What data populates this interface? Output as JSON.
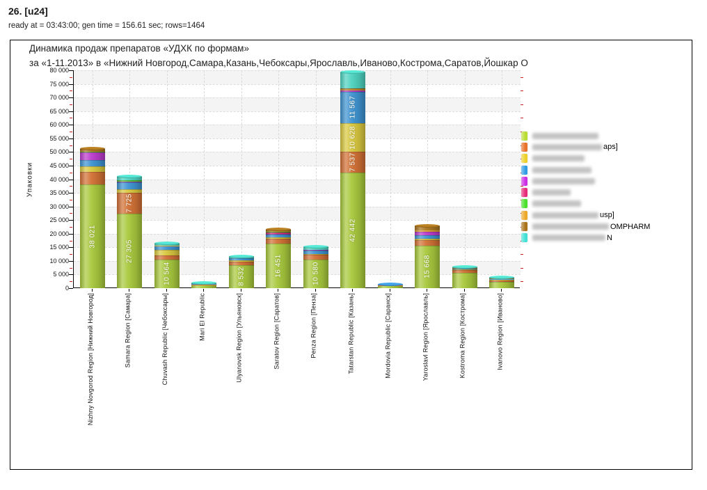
{
  "header": {
    "title": "26. [u24]",
    "meta": "ready at = 03:43:00; gen time = 156.61 sec; rows=1464"
  },
  "chart": {
    "title_line1": "Динамика продаж препаратов «УДХК по формам»",
    "title_line2": "за «1-11.2013» в «Нижний Новгород,Самара,Казань,Чебоксары,Ярославль,Иваново,Кострома,Саратов,Йошкар О",
    "y_axis_title": "Упаковки"
  },
  "chart_data": {
    "type": "bar",
    "stacked": true,
    "title": "Динамика продаж препаратов «УДХК по формам»",
    "subtitle": "за «1-11.2013» в «Нижний Новгород,Самара,Казань,Чебоксары,Ярославль,Иваново,Кострома,Саратов,Йошкар О",
    "ylabel": "Упаковки",
    "ylim": [
      0,
      80000
    ],
    "ytick_step": 5000,
    "ytick_minor_step": 2500,
    "grid": "alternating-bands-with-dashed-lines",
    "legend_position": "right",
    "categories": [
      "Nizhny Novgorod Region [Нижний Новгород]",
      "Samara Region [Самара]",
      "Chuvash Republic [Чебоксары]",
      "Mari El Republic",
      "Ulyanovsk Region [Ульяновск]",
      "Saratov Region [Саратов]",
      "Penza Region [Пенза]",
      "Tatarstan Republic [Казань]",
      "Mordovia Republic [Саранск]",
      "Yaroslavl Region [Ярославль]",
      "Kostroma Region [Кострома]",
      "Ivanovo Region [Иваново]"
    ],
    "series": [
      {
        "name": "redacted",
        "color": "#a8c93c",
        "values": [
          38021,
          27305,
          10564,
          1200,
          8532,
          16451,
          10580,
          42442,
          900,
          15668,
          5500,
          2400
        ]
      },
      {
        "name": "redacted [caps]",
        "color": "#d27035",
        "values": [
          4600,
          7725,
          1400,
          200,
          1100,
          1700,
          1600,
          7537,
          200,
          2000,
          1100,
          500
        ]
      },
      {
        "name": "redacted",
        "color": "#d9c83f",
        "values": [
          2000,
          1300,
          2000,
          100,
          500,
          400,
          400,
          10628,
          100,
          500,
          200,
          300
        ]
      },
      {
        "name": "redacted",
        "color": "#3e93d2",
        "values": [
          2300,
          2600,
          1500,
          100,
          800,
          1200,
          1200,
          11567,
          100,
          1300,
          400,
          200
        ]
      },
      {
        "name": "redacted",
        "color": "#bb3bcc",
        "values": [
          2800,
          300,
          0,
          0,
          0,
          300,
          400,
          500,
          0,
          1300,
          0,
          0
        ]
      },
      {
        "name": "redacted",
        "color": "#d63572",
        "values": [
          0,
          0,
          0,
          0,
          0,
          300,
          0,
          0,
          0,
          0,
          0,
          0
        ]
      },
      {
        "name": "redacted",
        "color": "#52cc30",
        "values": [
          300,
          300,
          0,
          0,
          0,
          400,
          0,
          0,
          0,
          0,
          0,
          0
        ]
      },
      {
        "name": "redacted [susp]",
        "color": "#dba133",
        "values": [
          0,
          0,
          200,
          0,
          0,
          300,
          0,
          400,
          0,
          700,
          200,
          200
        ]
      },
      {
        "name": "redacted OMPHARM",
        "color": "#a8741f",
        "values": [
          1000,
          0,
          0,
          0,
          0,
          300,
          0,
          400,
          0,
          1300,
          0,
          0
        ]
      },
      {
        "name": "redacted N",
        "color": "#4ed2c0",
        "values": [
          0,
          1300,
          800,
          200,
          500,
          0,
          1000,
          5700,
          0,
          0,
          300,
          300
        ]
      }
    ],
    "labeled_values": [
      "38 021",
      "27 305",
      "7 725",
      "10 564",
      "8 532",
      "16 451",
      "10 580",
      "42 442",
      "7 537",
      "10 628",
      "11 567",
      "15 668"
    ]
  },
  "legend": {
    "items": [
      {
        "color": "#b8dc30",
        "suffix": "",
        "redacted_width": 95
      },
      {
        "color": "#e87028",
        "suffix": "aps]",
        "redacted_width": 100
      },
      {
        "color": "#ecd028",
        "suffix": "",
        "redacted_width": 75
      },
      {
        "color": "#2f9ce4",
        "suffix": "",
        "redacted_width": 85
      },
      {
        "color": "#cc2ee4",
        "suffix": "",
        "redacted_width": 90
      },
      {
        "color": "#e82878",
        "suffix": "",
        "redacted_width": 55
      },
      {
        "color": "#48e028",
        "suffix": "",
        "redacted_width": 70
      },
      {
        "color": "#eca828",
        "suffix": "usp]",
        "redacted_width": 95
      },
      {
        "color": "#a87018",
        "suffix": "OMPHARM",
        "redacted_width": 110
      },
      {
        "color": "#40e0d4",
        "suffix": "N",
        "redacted_width": 105
      }
    ]
  }
}
